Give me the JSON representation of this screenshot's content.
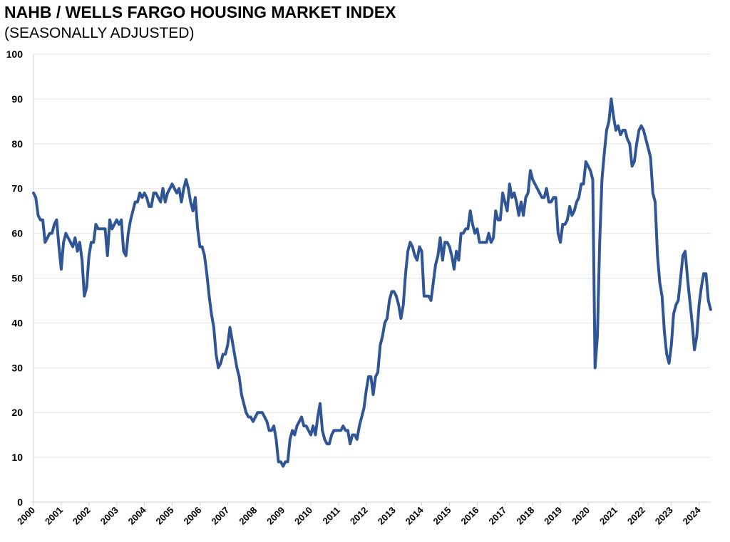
{
  "chart_data": {
    "type": "line",
    "title": "NAHB / WELLS FARGO HOUSING MARKET INDEX",
    "subtitle": "(SEASONALLY ADJUSTED)",
    "xlabel": "",
    "ylabel": "",
    "ylim": [
      0,
      100
    ],
    "yticks": [
      0,
      10,
      20,
      30,
      40,
      50,
      60,
      70,
      80,
      90,
      100
    ],
    "xticks": [
      "2000",
      "2001",
      "2002",
      "2003",
      "2004",
      "2005",
      "2006",
      "2007",
      "2008",
      "2009",
      "2010",
      "2011",
      "2012",
      "2013",
      "2014",
      "2015",
      "2016",
      "2017",
      "2018",
      "2019",
      "2020",
      "2021",
      "2022",
      "2023",
      "2024"
    ],
    "grid": true,
    "x_start": "2000-01",
    "x_frequency": "monthly",
    "line_color": "#2F5597",
    "series": [
      {
        "name": "Housing Market Index",
        "values": [
          69,
          68,
          64,
          63,
          63,
          58,
          59,
          60,
          60,
          62,
          63,
          57,
          52,
          58,
          60,
          59,
          58,
          57,
          59,
          56,
          58,
          54,
          46,
          48,
          55,
          58,
          58,
          62,
          61,
          61,
          61,
          61,
          55,
          63,
          61,
          62,
          63,
          62,
          63,
          56,
          55,
          60,
          63,
          65,
          67,
          67,
          69,
          68,
          69,
          68,
          66,
          66,
          69,
          69,
          68,
          67,
          70,
          67,
          69,
          70,
          71,
          70,
          69,
          70,
          67,
          70,
          72,
          70,
          67,
          65,
          68,
          61,
          57,
          57,
          55,
          51,
          46,
          42,
          39,
          33,
          30,
          31,
          33,
          33,
          35,
          39,
          36,
          33,
          30,
          28,
          24,
          22,
          20,
          19,
          19,
          18,
          19,
          20,
          20,
          20,
          19,
          18,
          16,
          16,
          17,
          14,
          9,
          9,
          8,
          9,
          9,
          14,
          16,
          15,
          17,
          18,
          19,
          17,
          17,
          16,
          15,
          17,
          15,
          19,
          22,
          16,
          14,
          13,
          13,
          15,
          16,
          16,
          16,
          16,
          17,
          16,
          16,
          13,
          15,
          15,
          14,
          17,
          19,
          21,
          25,
          28,
          28,
          24,
          28,
          29,
          35,
          37,
          40,
          41,
          45,
          47,
          47,
          46,
          44,
          41,
          44,
          51,
          56,
          58,
          57,
          55,
          54,
          57,
          56,
          46,
          46,
          46,
          45,
          49,
          53,
          55,
          59,
          54,
          58,
          58,
          57,
          55,
          52,
          56,
          54,
          60,
          60,
          61,
          61,
          65,
          62,
          60,
          61,
          58,
          58,
          58,
          58,
          60,
          58,
          59,
          65,
          63,
          63,
          69,
          67,
          65,
          71,
          68,
          69,
          67,
          64,
          67,
          64,
          68,
          69,
          74,
          72,
          71,
          70,
          69,
          68,
          68,
          70,
          67,
          67,
          68,
          68,
          60,
          58,
          62,
          62,
          63,
          66,
          64,
          65,
          67,
          68,
          71,
          71,
          76,
          75,
          74,
          72,
          30,
          37,
          58,
          72,
          78,
          83,
          85,
          90,
          86,
          83,
          84,
          82,
          83,
          83,
          81,
          80,
          75,
          76,
          80,
          83,
          84,
          83,
          81,
          79,
          77,
          69,
          67,
          55,
          49,
          46,
          38,
          33,
          31,
          35,
          42,
          44,
          45,
          50,
          55,
          56,
          50,
          45,
          40,
          34,
          37,
          44,
          48,
          51,
          51,
          45,
          43
        ]
      }
    ]
  }
}
